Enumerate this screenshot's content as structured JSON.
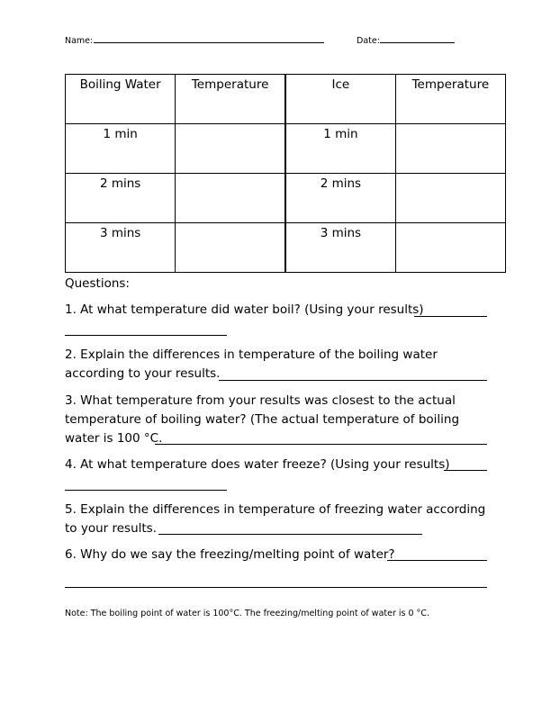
{
  "header": {
    "name_label": "Name:",
    "date_label": "Date:"
  },
  "table": {
    "headers": [
      "Boiling Water",
      "Temperature",
      "Ice",
      "Temperature"
    ],
    "rows": [
      [
        "1 min",
        "",
        "1 min",
        ""
      ],
      [
        "2 mins",
        "",
        "2 mins",
        ""
      ],
      [
        "3 mins",
        "",
        "3 mins",
        ""
      ]
    ]
  },
  "questions_label": "Questions:",
  "questions": [
    {
      "lines": [
        "1. At what temperature did water boil? (Using your results)"
      ]
    },
    {
      "lines": [
        "2. Explain the differences in temperature of the boiling water",
        "according to your results."
      ]
    },
    {
      "lines": [
        "3. What temperature from your results was closest to the actual",
        "temperature of boiling water? (The actual temperature of boiling",
        "water is 100 °C."
      ]
    },
    {
      "lines": [
        "4. At what temperature does water freeze? (Using your results)"
      ]
    },
    {
      "lines": [
        "5. Explain the differences in temperature of freezing water according",
        "to your results."
      ]
    },
    {
      "lines": [
        "6. Why do we say the freezing/melting point of water?"
      ]
    }
  ],
  "note": "Note: The boiling point of water is 100°C. The freezing/melting point of water is 0 °C."
}
